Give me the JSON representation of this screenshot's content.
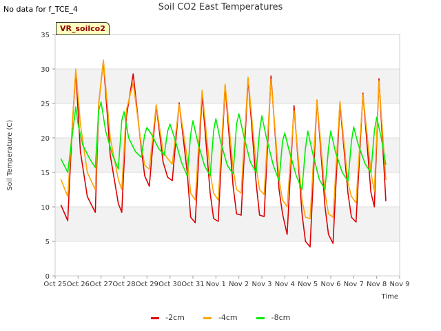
{
  "header": {
    "no_data_text": "No data for f_TCE_4",
    "title": "Soil CO2 East Temperatures",
    "site_tag": "VR_soilco2"
  },
  "chart_data": {
    "type": "line",
    "title": "Soil CO2 East Temperatures",
    "xlabel": "Time",
    "ylabel": "Soil Temperature (C)",
    "ylim": [
      0,
      35
    ],
    "yticks": [
      0,
      5,
      10,
      15,
      20,
      25,
      30,
      35
    ],
    "xlim": [
      0,
      15
    ],
    "xticks": [
      0,
      1,
      2,
      3,
      4,
      5,
      6,
      7,
      8,
      9,
      10,
      11,
      12,
      13,
      14,
      15
    ],
    "xtick_labels": [
      "Oct 25",
      "Oct 26",
      "Oct 27",
      "Oct 28",
      "Oct 29",
      "Oct 30",
      "Oct 31",
      "Nov 1",
      "Nov 2",
      "Nov 3",
      "Nov 4",
      "Nov 5",
      "Nov 6",
      "Nov 7",
      "Nov 8",
      "Nov 9"
    ],
    "grid": true,
    "legend_position": "bottom-center",
    "series": [
      {
        "name": "-2cm",
        "color": "#dd0000",
        "x": [
          0.25,
          0.55,
          0.75,
          0.9,
          1.1,
          1.4,
          1.75,
          1.9,
          2.1,
          2.4,
          2.75,
          2.9,
          3.1,
          3.4,
          3.75,
          3.9,
          4.1,
          4.4,
          4.7,
          4.9,
          5.1,
          5.4,
          5.75,
          5.9,
          6.1,
          6.4,
          6.75,
          6.9,
          7.1,
          7.4,
          7.75,
          7.9,
          8.1,
          8.4,
          8.75,
          8.9,
          9.1,
          9.4,
          9.75,
          9.9,
          10.1,
          10.4,
          10.75,
          10.9,
          11.1,
          11.4,
          11.75,
          11.9,
          12.1,
          12.4,
          12.75,
          12.9,
          13.1,
          13.4,
          13.75,
          13.9,
          14.1,
          14.4
        ],
        "values": [
          10.3,
          8.0,
          22.0,
          29.6,
          18.0,
          11.5,
          9.2,
          25.0,
          31.2,
          17.5,
          10.5,
          9.2,
          23.0,
          29.3,
          18.5,
          14.5,
          13.0,
          24.7,
          16.5,
          14.3,
          13.8,
          25.1,
          15.0,
          8.5,
          7.7,
          26.3,
          12.0,
          8.3,
          7.9,
          27.6,
          13.0,
          9.0,
          8.8,
          28.6,
          13.5,
          8.8,
          8.6,
          29.0,
          12.5,
          9.0,
          6.0,
          24.7,
          9.0,
          5.0,
          4.2,
          25.5,
          10.0,
          6.0,
          4.7,
          25.0,
          12.0,
          8.5,
          7.8,
          26.5,
          12.1,
          10.0,
          28.6,
          10.8
        ]
      },
      {
        "name": "-4cm",
        "color": "#ffa500",
        "x": [
          0.25,
          0.55,
          0.9,
          1.1,
          1.4,
          1.75,
          1.9,
          2.1,
          2.4,
          2.75,
          2.9,
          3.1,
          3.4,
          3.75,
          3.9,
          4.1,
          4.4,
          4.7,
          4.9,
          5.1,
          5.4,
          5.75,
          5.9,
          6.1,
          6.4,
          6.75,
          6.9,
          7.1,
          7.4,
          7.75,
          7.9,
          8.1,
          8.4,
          8.75,
          8.9,
          9.1,
          9.4,
          9.75,
          9.9,
          10.1,
          10.4,
          10.75,
          10.9,
          11.1,
          11.4,
          11.75,
          11.9,
          12.1,
          12.4,
          12.75,
          12.9,
          13.1,
          13.4,
          13.75,
          13.9,
          14.1,
          14.4
        ],
        "values": [
          14.0,
          11.5,
          30.0,
          22.0,
          15.0,
          12.5,
          25.0,
          31.3,
          20.0,
          14.0,
          12.5,
          24.0,
          28.0,
          19.0,
          16.0,
          15.5,
          24.8,
          18.0,
          17.0,
          16.2,
          24.9,
          17.0,
          12.0,
          11.0,
          26.9,
          15.0,
          12.0,
          11.0,
          27.8,
          15.5,
          12.5,
          12.0,
          28.8,
          16.0,
          12.5,
          11.8,
          28.5,
          14.0,
          11.0,
          10.0,
          24.0,
          11.0,
          8.5,
          8.3,
          25.5,
          12.0,
          9.0,
          8.5,
          25.3,
          13.5,
          11.5,
          10.6,
          26.3,
          15.0,
          12.3,
          28.3,
          13.9
        ]
      },
      {
        "name": "-8cm",
        "color": "#00ee00",
        "x": [
          0.25,
          0.55,
          0.9,
          1.0,
          1.2,
          1.5,
          1.75,
          1.9,
          2.0,
          2.2,
          2.5,
          2.75,
          2.9,
          3.0,
          3.2,
          3.5,
          3.75,
          3.9,
          4.0,
          4.2,
          4.5,
          4.75,
          4.9,
          5.0,
          5.2,
          5.5,
          5.75,
          5.9,
          6.0,
          6.2,
          6.5,
          6.75,
          6.9,
          7.0,
          7.2,
          7.5,
          7.75,
          7.9,
          8.0,
          8.2,
          8.5,
          8.75,
          8.9,
          9.0,
          9.2,
          9.5,
          9.75,
          9.9,
          10.0,
          10.2,
          10.5,
          10.75,
          10.9,
          11.0,
          11.2,
          11.5,
          11.75,
          11.9,
          12.0,
          12.2,
          12.5,
          12.75,
          12.9,
          13.0,
          13.2,
          13.5,
          13.75,
          13.9,
          14.0,
          14.2,
          14.4
        ],
        "values": [
          17.0,
          15.0,
          24.5,
          22.0,
          19.0,
          17.0,
          15.7,
          24.0,
          25.2,
          21.0,
          17.5,
          15.5,
          22.5,
          23.8,
          20.0,
          18.0,
          17.2,
          20.5,
          21.5,
          20.5,
          18.5,
          17.5,
          21.0,
          22.0,
          20.0,
          16.5,
          14.5,
          20.5,
          22.5,
          19.5,
          16.0,
          14.5,
          21.0,
          22.8,
          19.5,
          16.0,
          14.8,
          22.0,
          23.5,
          20.5,
          16.5,
          15.0,
          21.0,
          23.2,
          20.0,
          16.0,
          13.8,
          19.5,
          20.7,
          18.0,
          14.5,
          12.5,
          18.5,
          21.0,
          18.0,
          14.0,
          12.5,
          18.5,
          21.0,
          18.0,
          15.0,
          13.7,
          19.5,
          21.6,
          19.0,
          16.2,
          15.0,
          21.0,
          23.0,
          20.0,
          16.1
        ]
      }
    ]
  }
}
